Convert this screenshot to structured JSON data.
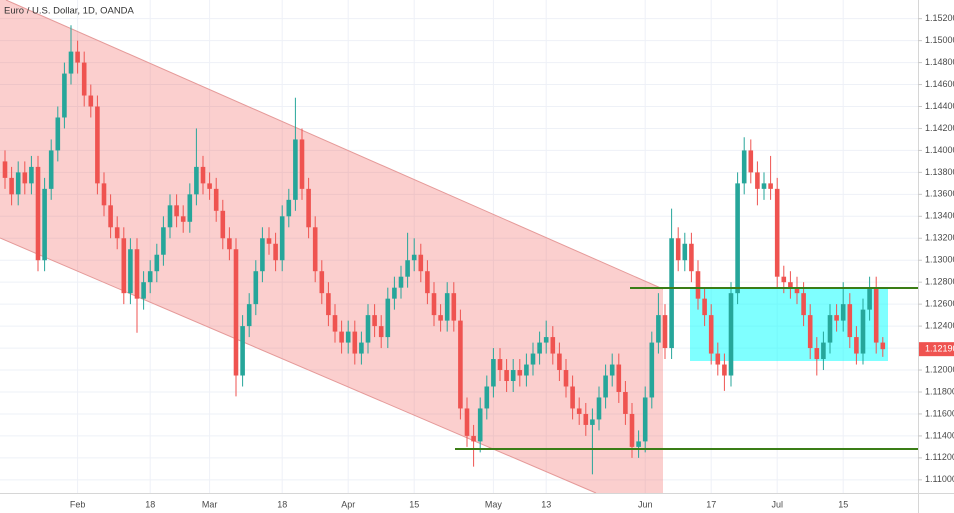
{
  "chart_data": {
    "type": "candlestick",
    "title": "Euro / U.S. Dollar, 1D, OANDA",
    "up_color": "#26a69a",
    "down_color": "#ef5350",
    "grid": true,
    "ylim": [
      1.1088,
      1.1537
    ],
    "yticks": [
      {
        "value": 1.11,
        "label": "1.11000"
      },
      {
        "value": 1.112,
        "label": "1.11200"
      },
      {
        "value": 1.114,
        "label": "1.11400"
      },
      {
        "value": 1.116,
        "label": "1.11600"
      },
      {
        "value": 1.118,
        "label": "1.11800"
      },
      {
        "value": 1.12,
        "label": "1.12000"
      },
      {
        "value": 1.122,
        "label": "1.12200"
      },
      {
        "value": 1.124,
        "label": "1.12400"
      },
      {
        "value": 1.126,
        "label": "1.12600"
      },
      {
        "value": 1.128,
        "label": "1.12800"
      },
      {
        "value": 1.13,
        "label": "1.13000"
      },
      {
        "value": 1.132,
        "label": "1.13200"
      },
      {
        "value": 1.134,
        "label": "1.13400"
      },
      {
        "value": 1.136,
        "label": "1.13600"
      },
      {
        "value": 1.138,
        "label": "1.13800"
      },
      {
        "value": 1.14,
        "label": "1.14000"
      },
      {
        "value": 1.142,
        "label": "1.14200"
      },
      {
        "value": 1.144,
        "label": "1.14400"
      },
      {
        "value": 1.146,
        "label": "1.14600"
      },
      {
        "value": 1.148,
        "label": "1.14800"
      },
      {
        "value": 1.15,
        "label": "1.15000"
      },
      {
        "value": 1.152,
        "label": "1.15200"
      }
    ],
    "last_price": {
      "value": 1.1219,
      "label": "1.12190"
    },
    "categories": [
      null,
      null,
      null,
      null,
      null,
      null,
      null,
      null,
      null,
      null,
      null,
      "Feb",
      null,
      null,
      null,
      null,
      null,
      null,
      null,
      null,
      null,
      null,
      "18",
      null,
      null,
      null,
      null,
      null,
      null,
      null,
      null,
      "Mar",
      null,
      null,
      null,
      null,
      null,
      null,
      null,
      null,
      null,
      null,
      "18",
      null,
      null,
      null,
      null,
      null,
      null,
      null,
      null,
      null,
      "Apr",
      null,
      null,
      null,
      null,
      null,
      null,
      null,
      null,
      null,
      "15",
      null,
      null,
      null,
      null,
      null,
      null,
      null,
      null,
      null,
      null,
      null,
      "May",
      null,
      null,
      null,
      null,
      null,
      null,
      null,
      "13",
      null,
      null,
      null,
      null,
      null,
      null,
      null,
      null,
      null,
      null,
      null,
      null,
      null,
      null,
      "Jun",
      null,
      null,
      null,
      null,
      null,
      null,
      null,
      null,
      null,
      "17",
      null,
      null,
      null,
      null,
      null,
      null,
      null,
      null,
      null,
      "Jul",
      null,
      null,
      null,
      null,
      null,
      null,
      null,
      null,
      null,
      "15",
      null,
      null,
      null,
      null,
      null,
      null
    ],
    "open": [
      1.139,
      1.1375,
      1.136,
      1.138,
      1.137,
      1.1385,
      1.13,
      1.1365,
      1.14,
      1.143,
      1.147,
      1.149,
      1.148,
      1.145,
      1.144,
      1.137,
      1.135,
      1.133,
      1.132,
      1.127,
      1.131,
      1.1265,
      1.128,
      1.129,
      1.1305,
      1.133,
      1.135,
      1.134,
      1.1335,
      1.136,
      1.1385,
      1.137,
      1.1365,
      1.1345,
      1.132,
      1.131,
      1.1195,
      1.124,
      1.126,
      1.129,
      1.132,
      1.1315,
      1.13,
      1.134,
      1.1355,
      1.141,
      1.1365,
      1.133,
      1.129,
      1.127,
      1.125,
      1.1235,
      1.1225,
      1.1235,
      1.1215,
      1.1225,
      1.125,
      1.124,
      1.123,
      1.1265,
      1.1275,
      1.1285,
      1.13,
      1.1305,
      1.129,
      1.127,
      1.125,
      1.1245,
      1.127,
      1.1245,
      1.1165,
      1.114,
      1.1135,
      1.1165,
      1.1185,
      1.121,
      1.12,
      1.119,
      1.12,
      1.1195,
      1.1205,
      1.1215,
      1.1225,
      1.123,
      1.1215,
      1.12,
      1.1185,
      1.1165,
      1.116,
      1.115,
      1.1155,
      1.1175,
      1.1195,
      1.1205,
      1.118,
      1.116,
      1.113,
      1.1135,
      1.1175,
      1.1225,
      1.125,
      1.122,
      1.132,
      1.13,
      1.1315,
      1.129,
      1.1265,
      1.125,
      1.1215,
      1.1205,
      1.1195,
      1.127,
      1.137,
      1.14,
      1.138,
      1.1365,
      1.137,
      1.1365,
      1.1285,
      1.128,
      1.1275,
      1.127,
      1.125,
      1.122,
      1.121,
      1.1225,
      1.125,
      1.1245,
      1.126,
      1.123,
      1.1215,
      1.1255,
      1.1275,
      1.1225
    ],
    "high": [
      1.14,
      1.1385,
      1.139,
      1.139,
      1.1395,
      1.1395,
      1.1375,
      1.141,
      1.144,
      1.148,
      1.1514,
      1.15,
      1.149,
      1.146,
      1.145,
      1.138,
      1.136,
      1.134,
      1.133,
      1.132,
      1.132,
      1.129,
      1.13,
      1.1315,
      1.134,
      1.136,
      1.136,
      1.135,
      1.137,
      1.142,
      1.1395,
      1.138,
      1.1375,
      1.1355,
      1.133,
      1.132,
      1.125,
      1.127,
      1.13,
      1.133,
      1.133,
      1.1325,
      1.135,
      1.1365,
      1.1448,
      1.142,
      1.1375,
      1.134,
      1.13,
      1.128,
      1.126,
      1.1245,
      1.1245,
      1.1245,
      1.1235,
      1.126,
      1.126,
      1.125,
      1.1275,
      1.1285,
      1.1295,
      1.1325,
      1.132,
      1.1315,
      1.13,
      1.128,
      1.126,
      1.128,
      1.128,
      1.1255,
      1.1175,
      1.115,
      1.1175,
      1.1195,
      1.122,
      1.122,
      1.121,
      1.121,
      1.121,
      1.1215,
      1.1225,
      1.1235,
      1.1245,
      1.124,
      1.1225,
      1.121,
      1.1195,
      1.1175,
      1.117,
      1.1165,
      1.1185,
      1.1205,
      1.1215,
      1.1215,
      1.119,
      1.117,
      1.1145,
      1.1185,
      1.1235,
      1.127,
      1.126,
      1.1347,
      1.133,
      1.1325,
      1.1325,
      1.13,
      1.1275,
      1.126,
      1.1225,
      1.1215,
      1.128,
      1.138,
      1.1412,
      1.141,
      1.139,
      1.138,
      1.1395,
      1.1375,
      1.1295,
      1.129,
      1.1285,
      1.128,
      1.126,
      1.123,
      1.1235,
      1.126,
      1.126,
      1.128,
      1.127,
      1.124,
      1.1265,
      1.1285,
      1.1285,
      1.123
    ],
    "low": [
      1.1365,
      1.135,
      1.135,
      1.136,
      1.136,
      1.129,
      1.129,
      1.1355,
      1.139,
      1.142,
      1.146,
      1.147,
      1.144,
      1.143,
      1.136,
      1.134,
      1.132,
      1.131,
      1.126,
      1.126,
      1.1234,
      1.1255,
      1.127,
      1.128,
      1.1295,
      1.132,
      1.133,
      1.1325,
      1.1325,
      1.135,
      1.136,
      1.1355,
      1.1335,
      1.131,
      1.13,
      1.1176,
      1.1185,
      1.123,
      1.125,
      1.128,
      1.1305,
      1.129,
      1.129,
      1.133,
      1.1345,
      1.1355,
      1.132,
      1.128,
      1.126,
      1.124,
      1.1225,
      1.1215,
      1.1215,
      1.1205,
      1.1205,
      1.1215,
      1.123,
      1.122,
      1.122,
      1.1255,
      1.1265,
      1.1275,
      1.129,
      1.128,
      1.126,
      1.124,
      1.1235,
      1.1235,
      1.1235,
      1.1155,
      1.113,
      1.1112,
      1.1125,
      1.1155,
      1.1175,
      1.119,
      1.118,
      1.118,
      1.1185,
      1.1185,
      1.1195,
      1.1205,
      1.1215,
      1.1205,
      1.119,
      1.1175,
      1.1155,
      1.115,
      1.114,
      1.1105,
      1.1145,
      1.1165,
      1.1185,
      1.117,
      1.115,
      1.112,
      1.112,
      1.1125,
      1.1165,
      1.1215,
      1.121,
      1.121,
      1.129,
      1.129,
      1.128,
      1.1255,
      1.124,
      1.1205,
      1.1195,
      1.1181,
      1.1185,
      1.126,
      1.136,
      1.137,
      1.135,
      1.1355,
      1.1355,
      1.1275,
      1.127,
      1.1265,
      1.126,
      1.124,
      1.121,
      1.1195,
      1.12,
      1.1215,
      1.1235,
      1.1235,
      1.122,
      1.1205,
      1.1205,
      1.1245,
      1.1215,
      1.1212
    ],
    "close": [
      1.1375,
      1.136,
      1.138,
      1.137,
      1.1385,
      1.13,
      1.1365,
      1.14,
      1.143,
      1.147,
      1.149,
      1.148,
      1.145,
      1.144,
      1.137,
      1.135,
      1.133,
      1.132,
      1.127,
      1.131,
      1.1265,
      1.128,
      1.129,
      1.1305,
      1.133,
      1.135,
      1.134,
      1.1335,
      1.136,
      1.1385,
      1.137,
      1.1365,
      1.1345,
      1.132,
      1.131,
      1.1195,
      1.124,
      1.126,
      1.129,
      1.132,
      1.1315,
      1.13,
      1.134,
      1.1355,
      1.141,
      1.1365,
      1.133,
      1.129,
      1.127,
      1.125,
      1.1235,
      1.1225,
      1.1235,
      1.1215,
      1.1225,
      1.125,
      1.124,
      1.123,
      1.1265,
      1.1275,
      1.1285,
      1.13,
      1.1305,
      1.129,
      1.127,
      1.125,
      1.1245,
      1.127,
      1.1245,
      1.1165,
      1.114,
      1.1135,
      1.1165,
      1.1185,
      1.121,
      1.12,
      1.119,
      1.12,
      1.1195,
      1.1205,
      1.1215,
      1.1225,
      1.123,
      1.1215,
      1.12,
      1.1185,
      1.1165,
      1.116,
      1.115,
      1.1155,
      1.1175,
      1.1195,
      1.1205,
      1.118,
      1.116,
      1.113,
      1.1135,
      1.1175,
      1.1225,
      1.125,
      1.122,
      1.132,
      1.13,
      1.1315,
      1.129,
      1.1265,
      1.125,
      1.1215,
      1.1205,
      1.1195,
      1.127,
      1.137,
      1.14,
      1.138,
      1.1365,
      1.137,
      1.1365,
      1.1285,
      1.128,
      1.1275,
      1.127,
      1.125,
      1.122,
      1.121,
      1.1225,
      1.125,
      1.1245,
      1.126,
      1.123,
      1.1215,
      1.1255,
      1.1275,
      1.1225,
      1.1219
    ]
  }
}
